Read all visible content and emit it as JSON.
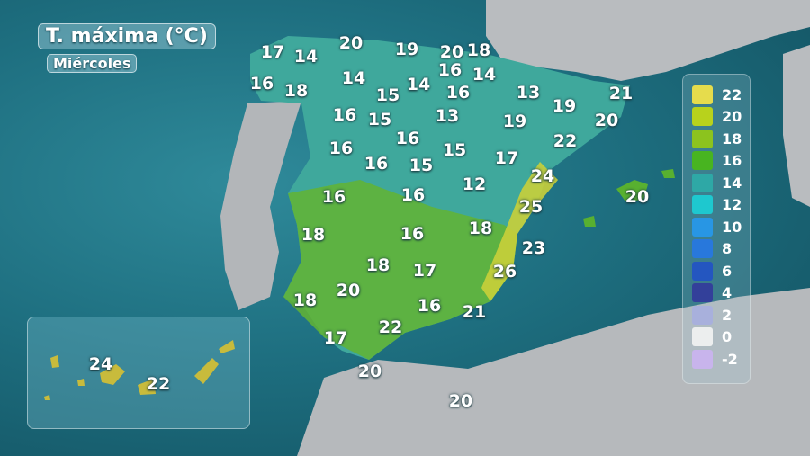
{
  "title": "T. máxima (°C)",
  "day": "Miércoles",
  "legend": [
    {
      "label": "22",
      "color": "#e6dc4c"
    },
    {
      "label": "20",
      "color": "#b8d21c"
    },
    {
      "label": "18",
      "color": "#8cc31e"
    },
    {
      "label": "16",
      "color": "#48b420"
    },
    {
      "label": "14",
      "color": "#2ea8a6"
    },
    {
      "label": "12",
      "color": "#1ec8cf"
    },
    {
      "label": "10",
      "color": "#2896e4"
    },
    {
      "label": "8",
      "color": "#2878dc"
    },
    {
      "label": "6",
      "color": "#2456c0"
    },
    {
      "label": "4",
      "color": "#33409a"
    },
    {
      "label": "2",
      "color": "#a8b0dc"
    },
    {
      "label": "0",
      "color": "#eceeee"
    },
    {
      "label": "-2",
      "color": "#c8b4ec"
    }
  ],
  "temperatures": [
    "20",
    "19",
    "20",
    "18",
    "17",
    "14",
    "16",
    "18",
    "14",
    "16",
    "14",
    "15",
    "14",
    "16",
    "13",
    "21",
    "16",
    "15",
    "13",
    "19",
    "19",
    "20",
    "16",
    "16",
    "15",
    "22",
    "16",
    "15",
    "17",
    "24",
    "16",
    "16",
    "12",
    "20",
    "25",
    "18",
    "16",
    "18",
    "23",
    "18",
    "17",
    "26",
    "20",
    "18",
    "16",
    "21",
    "22",
    "17",
    "20",
    "20"
  ],
  "canary_temperatures": [
    "24",
    "22"
  ]
}
